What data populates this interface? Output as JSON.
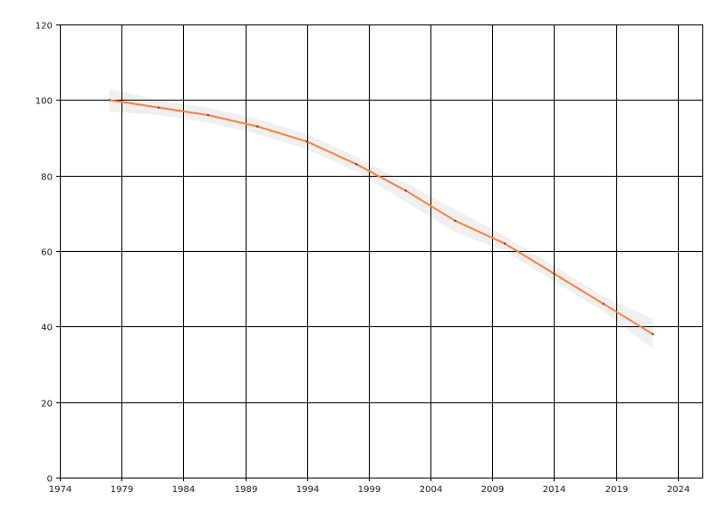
{
  "chart_data": {
    "type": "line",
    "title": "",
    "xlabel": "",
    "ylabel": "",
    "xlim": [
      1974,
      2026
    ],
    "ylim": [
      0,
      120
    ],
    "x_ticks": [
      1974,
      1979,
      1984,
      1989,
      1994,
      1999,
      2004,
      2009,
      2014,
      2019,
      2024
    ],
    "y_ticks": [
      0,
      20,
      40,
      60,
      80,
      100,
      120
    ],
    "grid": true,
    "series": [
      {
        "x": [
          1978,
          1982,
          1986,
          1990,
          1994,
          1998,
          2002,
          2006,
          2010,
          2014,
          2018,
          2022
        ],
        "values": [
          100,
          98,
          96,
          93,
          89,
          83,
          76,
          68,
          62,
          54,
          46,
          38
        ],
        "lower": [
          97,
          96,
          94,
          91,
          87,
          81,
          73,
          65,
          60,
          52,
          44,
          34
        ],
        "upper": [
          103,
          100,
          98,
          95,
          91,
          85,
          78,
          71,
          64,
          56,
          48,
          42
        ],
        "color": "#ff7f3f",
        "band_color": "#efefef",
        "marker_color": "#404040"
      }
    ]
  }
}
